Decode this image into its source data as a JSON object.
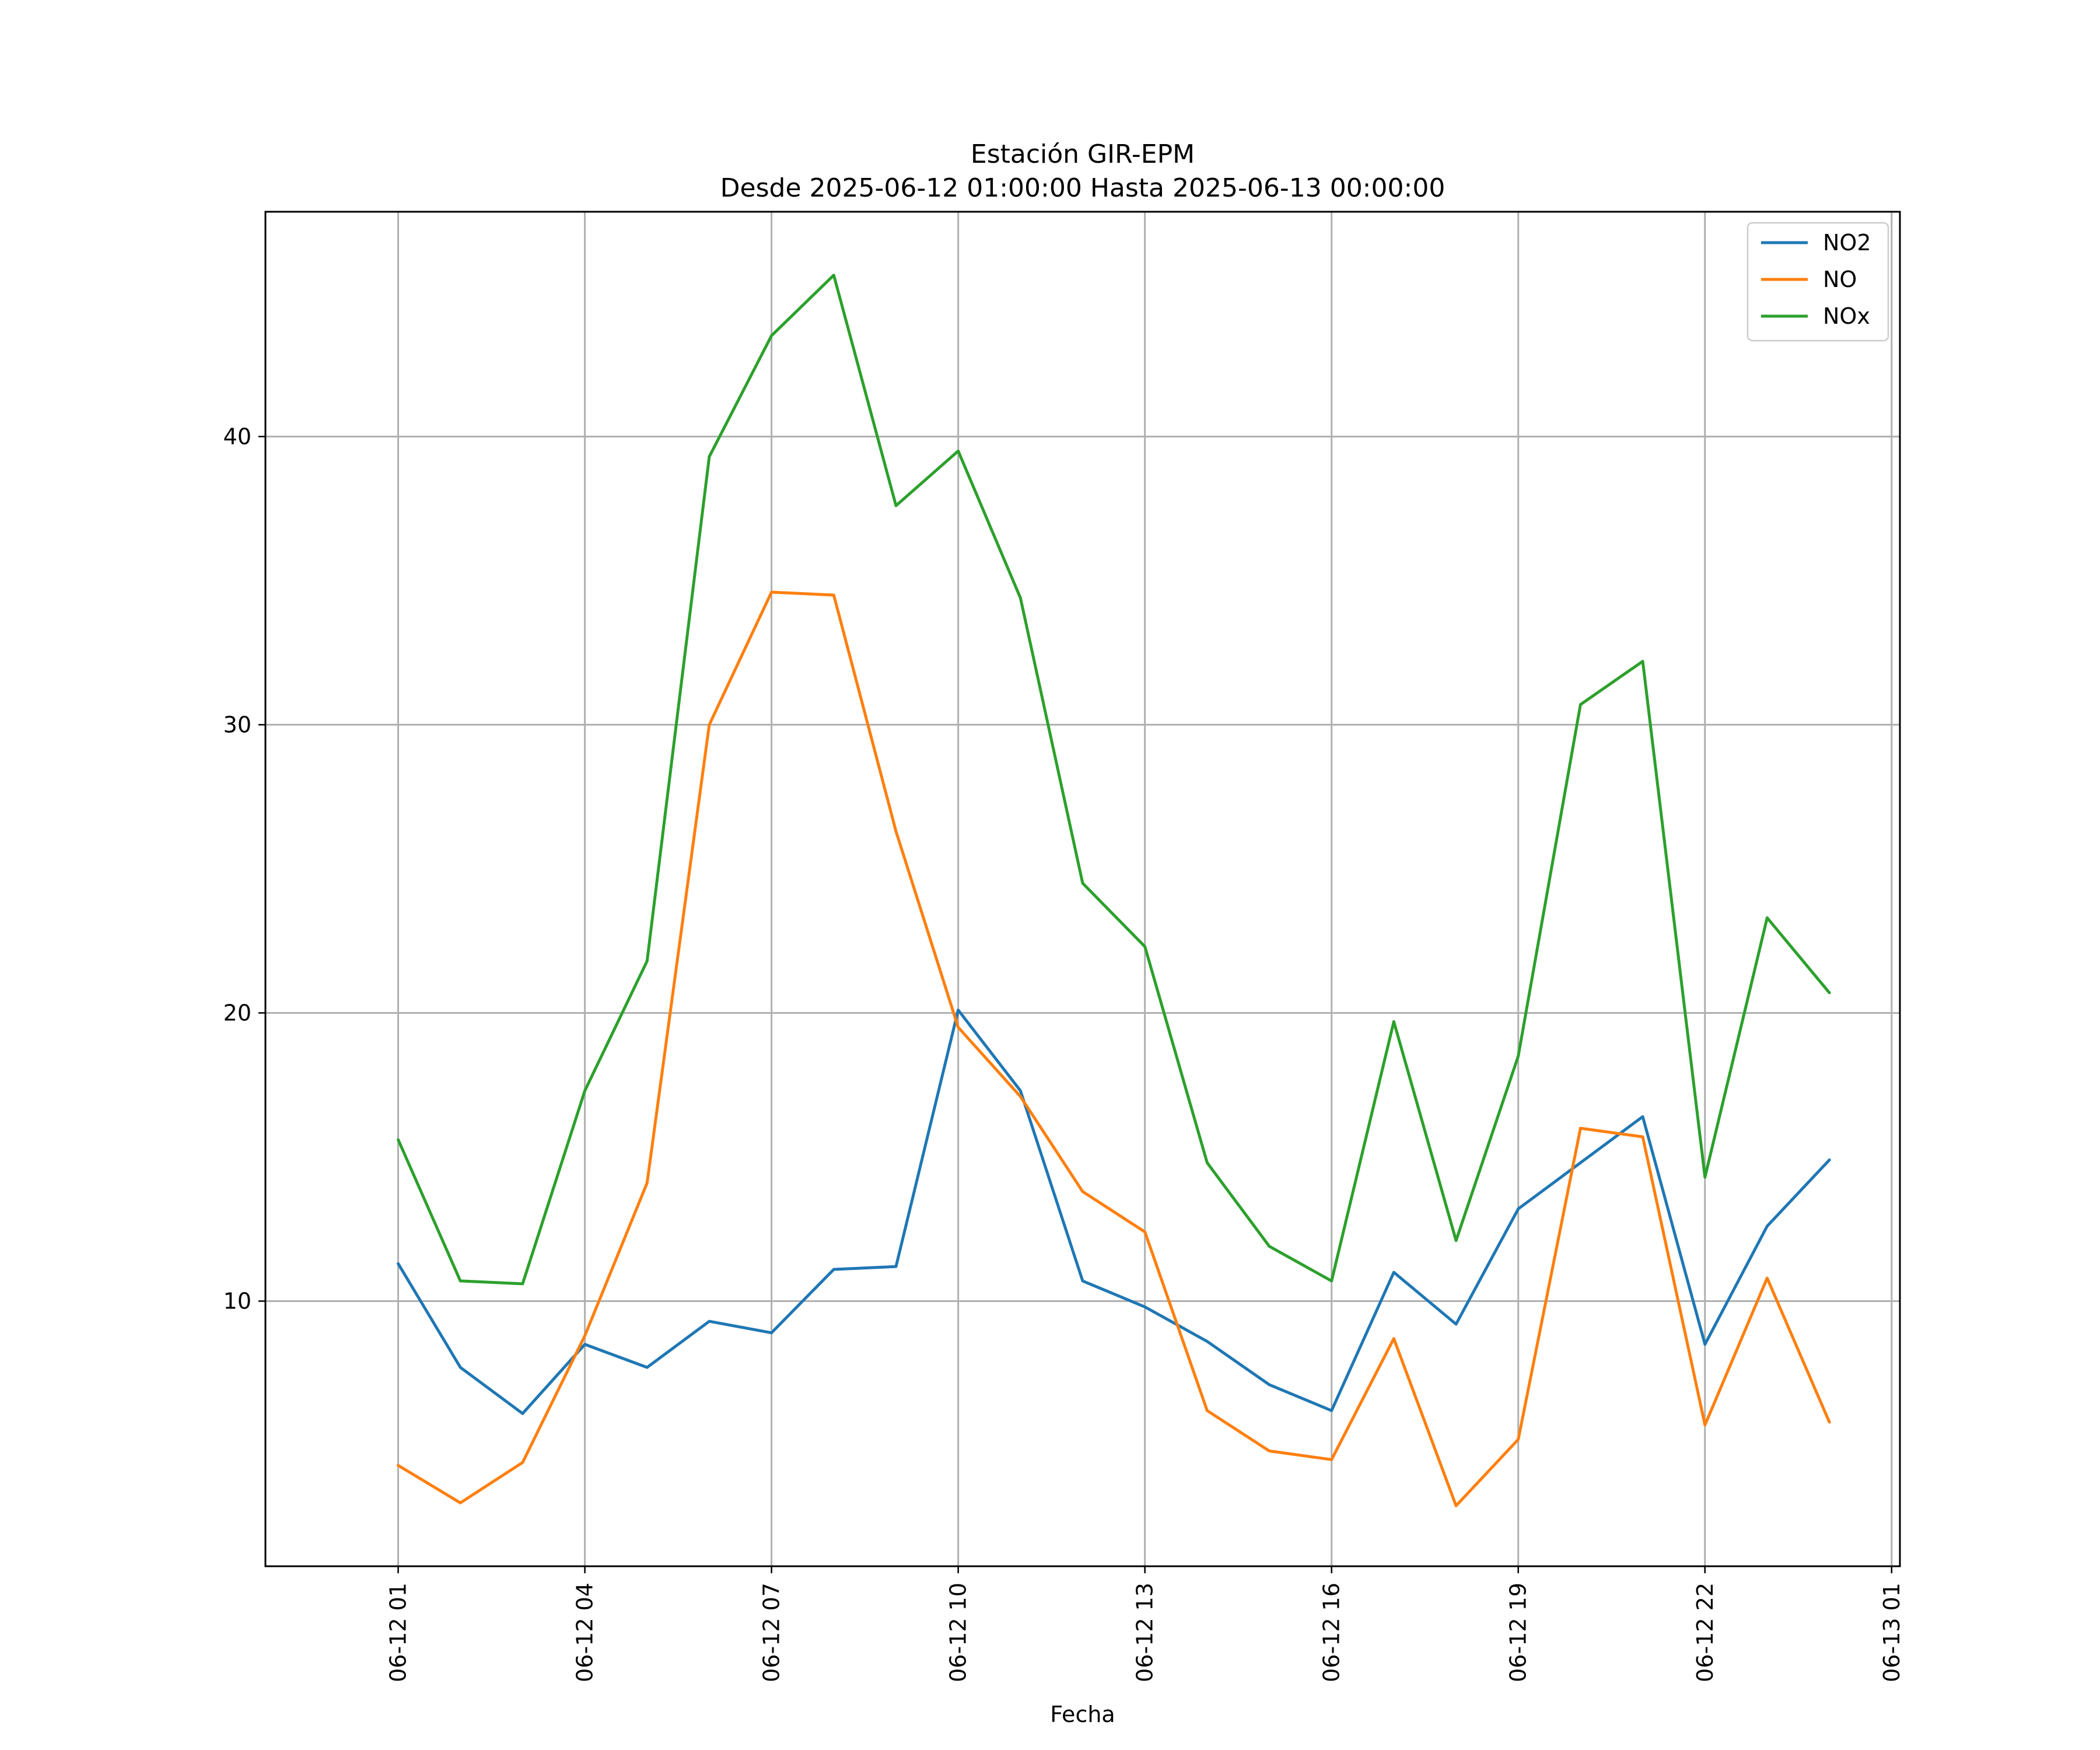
{
  "chart_data": {
    "type": "line",
    "title": "Estación GIR-EPM",
    "subtitle": "Desde 2025-06-12 01:00:00 Hasta 2025-06-13 00:00:00",
    "xlabel": "Fecha",
    "ylabel": "",
    "x": [
      "2025-06-12 01:00",
      "2025-06-12 02:00",
      "2025-06-12 03:00",
      "2025-06-12 04:00",
      "2025-06-12 05:00",
      "2025-06-12 06:00",
      "2025-06-12 07:00",
      "2025-06-12 08:00",
      "2025-06-12 09:00",
      "2025-06-12 10:00",
      "2025-06-12 11:00",
      "2025-06-12 12:00",
      "2025-06-12 13:00",
      "2025-06-12 14:00",
      "2025-06-12 15:00",
      "2025-06-12 16:00",
      "2025-06-12 17:00",
      "2025-06-12 18:00",
      "2025-06-12 19:00",
      "2025-06-12 20:00",
      "2025-06-12 21:00",
      "2025-06-12 22:00",
      "2025-06-12 23:00",
      "2025-06-13 00:00"
    ],
    "x_ticks": [
      "06-12 01",
      "06-12 04",
      "06-12 07",
      "06-12 10",
      "06-12 13",
      "06-12 16",
      "06-12 19",
      "06-12 22",
      "06-13 01"
    ],
    "xlim": [
      "2025-06-11 22:52",
      "2025-06-13 01:08"
    ],
    "y_ticks": [
      10,
      20,
      30,
      40
    ],
    "ylim": [
      0.8,
      47.8
    ],
    "grid": true,
    "legend_position": "top-right",
    "series": [
      {
        "name": "NO2",
        "color": "#1f77b4",
        "values": [
          11.3,
          7.7,
          6.1,
          8.5,
          7.7,
          9.3,
          8.9,
          11.1,
          11.2,
          20.1,
          17.3,
          10.7,
          9.8,
          8.6,
          7.1,
          6.2,
          11.0,
          9.2,
          13.2,
          14.8,
          16.4,
          8.5,
          12.6,
          14.9
        ]
      },
      {
        "name": "NO",
        "color": "#ff7f0e",
        "values": [
          4.3,
          3.0,
          4.4,
          8.8,
          14.1,
          30.0,
          34.6,
          34.5,
          26.3,
          19.5,
          17.1,
          13.8,
          12.4,
          6.2,
          4.8,
          4.5,
          8.7,
          2.9,
          5.2,
          16.0,
          15.7,
          5.7,
          10.8,
          5.8
        ]
      },
      {
        "name": "NOx",
        "color": "#2ca02c",
        "values": [
          15.6,
          10.7,
          10.6,
          17.3,
          21.8,
          39.3,
          43.5,
          45.6,
          37.6,
          39.5,
          34.4,
          24.5,
          22.3,
          14.8,
          11.9,
          10.7,
          19.7,
          12.1,
          18.5,
          30.7,
          32.2,
          14.3,
          23.3,
          20.7
        ]
      }
    ]
  }
}
